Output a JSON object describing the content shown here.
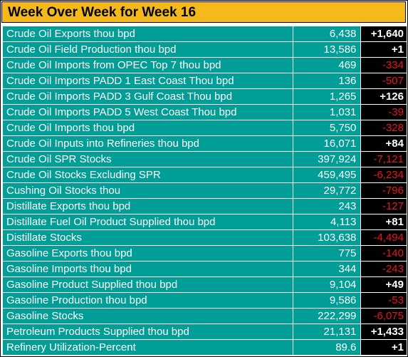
{
  "title": "Week Over Week for Week 16",
  "colors": {
    "title_bg": "#f5b91c",
    "row_bg": "#009e96",
    "change_bg": "#000000",
    "positive": "#ffffff",
    "negative": "#e81717"
  },
  "rows": [
    {
      "name": "Crude Oil Exports thou bpd",
      "value": "6,438",
      "change": "+1,640",
      "direction": "pos"
    },
    {
      "name": "Crude Oil Field Production thou bpd",
      "value": "13,586",
      "change": "+1",
      "direction": "pos"
    },
    {
      "name": "Crude Oil Imports from OPEC Top 7 thou bpd",
      "value": "469",
      "change": "-334",
      "direction": "neg"
    },
    {
      "name": "Crude Oil Imports PADD 1 East Coast Thou bpd",
      "value": "136",
      "change": "-507",
      "direction": "neg"
    },
    {
      "name": "Crude Oil Imports PADD 3 Gulf Coast Thou bpd",
      "value": "1,265",
      "change": "+126",
      "direction": "pos"
    },
    {
      "name": "Crude Oil Imports PADD 5 West Coast Thou bpd",
      "value": "1,031",
      "change": "-39",
      "direction": "neg"
    },
    {
      "name": "Crude Oil Imports thou bpd",
      "value": "5,750",
      "change": "-328",
      "direction": "neg"
    },
    {
      "name": "Crude Oil Inputs into Refineries thou bpd",
      "value": "16,071",
      "change": "+84",
      "direction": "pos"
    },
    {
      "name": "Crude Oil SPR Stocks",
      "value": "397,924",
      "change": "-7,121",
      "direction": "neg"
    },
    {
      "name": "Crude Oil Stocks Excluding SPR",
      "value": "459,495",
      "change": "-6,234",
      "direction": "neg"
    },
    {
      "name": "Cushing Oil Stocks thou",
      "value": "29,772",
      "change": "-796",
      "direction": "neg"
    },
    {
      "name": "Distillate Exports thou bpd",
      "value": "243",
      "change": "-127",
      "direction": "neg"
    },
    {
      "name": "Distillate Fuel Oil Product Supplied thou bpd",
      "value": "4,113",
      "change": "+81",
      "direction": "pos"
    },
    {
      "name": "Distillate Stocks",
      "value": "103,638",
      "change": "-4,494",
      "direction": "neg"
    },
    {
      "name": "Gasoline Exports thou bpd",
      "value": "775",
      "change": "-140",
      "direction": "neg"
    },
    {
      "name": "Gasoline Imports thou bpd",
      "value": "344",
      "change": "-243",
      "direction": "neg"
    },
    {
      "name": "Gasoline Product Supplied thou bpd",
      "value": "9,104",
      "change": "+49",
      "direction": "pos"
    },
    {
      "name": "Gasoline Production thou bpd",
      "value": "9,586",
      "change": "-53",
      "direction": "neg"
    },
    {
      "name": "Gasoline Stocks",
      "value": "222,299",
      "change": "-6,075",
      "direction": "neg"
    },
    {
      "name": "Petroleum Products Supplied thou bpd",
      "value": "21,131",
      "change": "+1,433",
      "direction": "pos"
    },
    {
      "name": "Refinery Utilization-Percent",
      "value": "89.6",
      "change": "+1",
      "direction": "pos"
    }
  ]
}
